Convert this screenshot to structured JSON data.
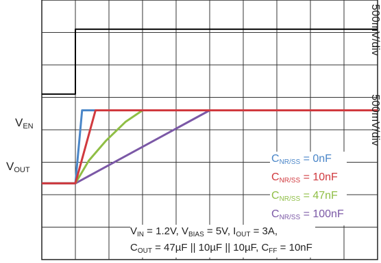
{
  "channel_labels": {
    "en": {
      "main": "V",
      "sub": "EN"
    },
    "out": {
      "main": "V",
      "sub": "OUT"
    }
  },
  "scale_labels": [
    "500mV/div",
    "500mV/div"
  ],
  "legend": [
    {
      "main": "C",
      "sub": "NR/SS",
      "value": " = 0nF",
      "color": "#4a86c8"
    },
    {
      "main": "C",
      "sub": "NR/SS",
      "value": " = 10nF",
      "color": "#d0393e"
    },
    {
      "main": "C",
      "sub": "NR/SS",
      "value": " = 47nF",
      "color": "#8fbe45"
    },
    {
      "main": "C",
      "sub": "NR/SS",
      "value": " = 100nF",
      "color": "#7b58a6"
    }
  ],
  "conditions": {
    "vin_main": "V",
    "vin_sub": "IN",
    "vin_val": " = 1.2V, ",
    "vbias_main": "V",
    "vbias_sub": "BIAS",
    "vbias_val": " = 5V, ",
    "iout_main": "I",
    "iout_sub": "OUT",
    "iout_val": " = 3A,",
    "cout_main": "C",
    "cout_sub": "OUT",
    "cout_val": " = 47µF || 10µF || 10µF, ",
    "cff_main": "C",
    "cff_sub": "FF",
    "cff_val": " = 10nF"
  },
  "chart_data": {
    "type": "line",
    "grid": true,
    "xlim": [
      0,
      10
    ],
    "ylim": [
      0,
      8
    ],
    "series": [
      {
        "name": "EN",
        "color": "#000000",
        "step": true,
        "x": [
          0,
          1.0,
          1.0,
          10
        ],
        "y": [
          5.1,
          5.1,
          7.1,
          7.1
        ]
      },
      {
        "name": "CNR/SS = 0nF",
        "color": "#4a86c8",
        "x": [
          0,
          1.0,
          1.2,
          10
        ],
        "y": [
          2.35,
          2.35,
          4.6,
          4.6
        ]
      },
      {
        "name": "CNR/SS = 10nF",
        "color": "#d0393e",
        "x": [
          0,
          1.0,
          1.6,
          10
        ],
        "y": [
          2.35,
          2.35,
          4.6,
          4.6
        ]
      },
      {
        "name": "CNR/SS = 47nF",
        "color": "#8fbe45",
        "x": [
          0,
          1.0,
          1.4,
          1.9,
          2.5,
          3.0,
          10
        ],
        "y": [
          2.35,
          2.35,
          3.05,
          3.65,
          4.25,
          4.6,
          4.6
        ]
      },
      {
        "name": "CNR/SS = 100nF",
        "color": "#7b58a6",
        "x": [
          0,
          1.0,
          5.0,
          10
        ],
        "y": [
          2.35,
          2.35,
          4.6,
          4.6
        ]
      }
    ]
  }
}
